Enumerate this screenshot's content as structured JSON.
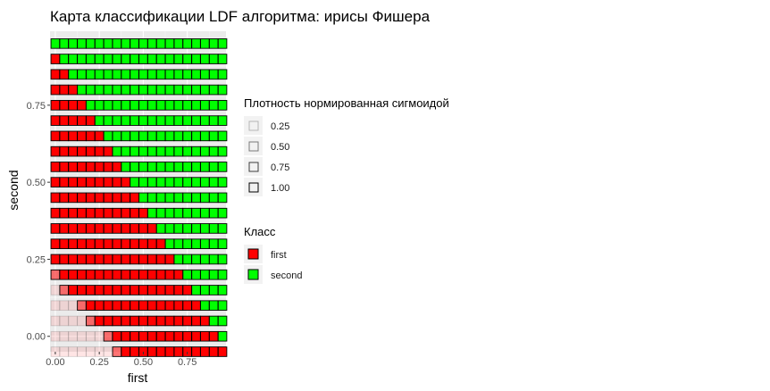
{
  "chart_data": {
    "type": "heatmap",
    "title": "Карта классификации LDF алгоритма: ирисы Фишера",
    "xlabel": "first",
    "ylabel": "second",
    "xlim": [
      -0.03,
      0.97
    ],
    "ylim": [
      -0.05,
      0.99
    ],
    "x_ticks": [
      0,
      0.25,
      0.5,
      0.75
    ],
    "x_tick_labels": [
      "0.00",
      "0.25",
      "0.50",
      "0.75"
    ],
    "y_ticks": [
      0,
      0.25,
      0.5,
      0.75
    ],
    "y_tick_labels": [
      "0.00",
      "0.25",
      "0.50",
      "0.75"
    ],
    "grid": true,
    "cell_step_x": 0.05,
    "cell_step_y": 0.05,
    "x_values": [
      0.0,
      0.05,
      0.1,
      0.15,
      0.2,
      0.25,
      0.3,
      0.35,
      0.4,
      0.45,
      0.5,
      0.55,
      0.6,
      0.65,
      0.7,
      0.75,
      0.8,
      0.85,
      0.9,
      0.95
    ],
    "class_colors": {
      "first": "#ff0000",
      "second": "#00ff00"
    },
    "rows": [
      {
        "y": 0.95,
        "boundary": 0.0
      },
      {
        "y": 0.9,
        "boundary": 0.05
      },
      {
        "y": 0.85,
        "boundary": 0.1
      },
      {
        "y": 0.8,
        "boundary": 0.15
      },
      {
        "y": 0.75,
        "boundary": 0.2
      },
      {
        "y": 0.7,
        "boundary": 0.25
      },
      {
        "y": 0.65,
        "boundary": 0.3
      },
      {
        "y": 0.6,
        "boundary": 0.35
      },
      {
        "y": 0.55,
        "boundary": 0.4
      },
      {
        "y": 0.5,
        "boundary": 0.45
      },
      {
        "y": 0.45,
        "boundary": 0.5
      },
      {
        "y": 0.4,
        "boundary": 0.55
      },
      {
        "y": 0.35,
        "boundary": 0.6
      },
      {
        "y": 0.3,
        "boundary": 0.65
      },
      {
        "y": 0.25,
        "boundary": 0.7
      },
      {
        "y": 0.2,
        "boundary": 0.75,
        "faint_before": 0.0,
        "mid_at": 0.0
      },
      {
        "y": 0.15,
        "boundary": 0.8,
        "faint_before": 0.05,
        "mid_at": 0.05
      },
      {
        "y": 0.1,
        "boundary": 0.85,
        "faint_before": 0.15,
        "mid_at": 0.15
      },
      {
        "y": 0.05,
        "boundary": 0.9,
        "faint_before": 0.2,
        "mid_at": 0.2
      },
      {
        "y": 0.0,
        "boundary": 0.95,
        "faint_before": 0.3,
        "mid_at": 0.3
      },
      {
        "y": -0.05,
        "boundary": 1.0,
        "faint_before": 0.35,
        "mid_at": 0.35
      }
    ],
    "density_levels": [
      0.25,
      0.5,
      0.75,
      1.0
    ],
    "legend": {
      "placement": "right",
      "density": {
        "title": "Плотность нормированная сигмоидой",
        "labels": [
          "0.25",
          "0.50",
          "0.75",
          "1.00"
        ],
        "values": [
          0.25,
          0.5,
          0.75,
          1.0
        ]
      },
      "class": {
        "title": "Класс",
        "labels": [
          "first",
          "second"
        ],
        "colors": [
          "#ff0000",
          "#00ff00"
        ]
      }
    }
  }
}
